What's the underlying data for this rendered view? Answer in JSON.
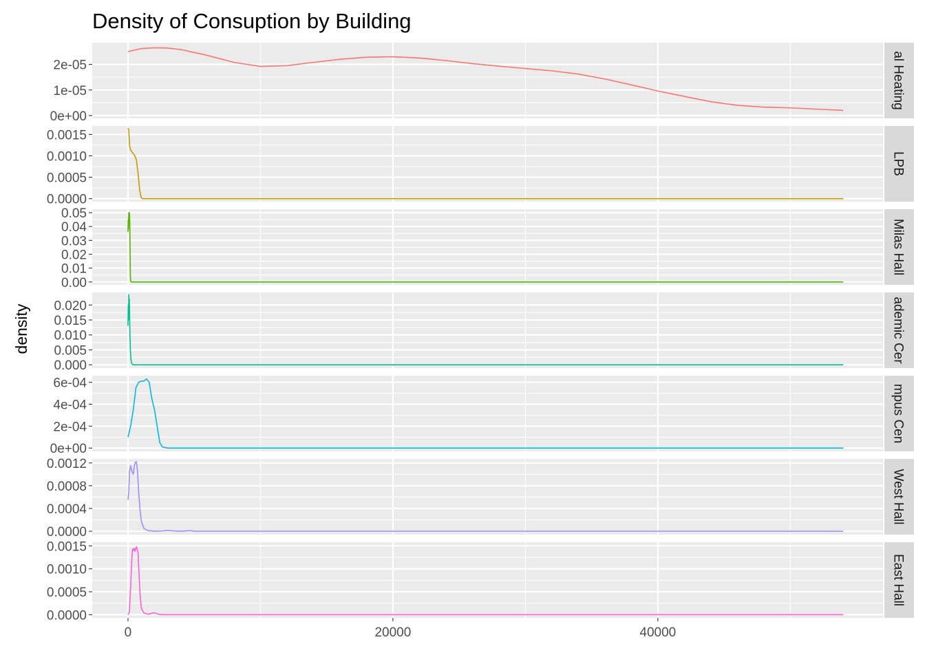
{
  "chart_data": {
    "type": "line",
    "title": "Density of Consuption by Building",
    "xlabel": "",
    "ylabel": "density",
    "xlim": [
      -2700,
      57000
    ],
    "x_ticks": [
      0,
      20000,
      40000
    ],
    "x_tick_labels": [
      "0",
      "20000",
      "40000"
    ],
    "grid": true,
    "legend": "none",
    "panels": [
      {
        "strip": "al Heating",
        "color": "#F8766D",
        "ylim": [
          -1.1e-06,
          2.85e-05
        ],
        "y_ticks": [
          0,
          1e-05,
          2e-05
        ],
        "y_tick_labels": [
          "0e+00",
          "1e-05",
          "2e-05"
        ],
        "x": [
          0,
          1000,
          2000,
          3000,
          4000,
          6000,
          8000,
          10000,
          12000,
          14000,
          16000,
          18000,
          20000,
          22000,
          24000,
          26000,
          28000,
          30000,
          32000,
          34000,
          36000,
          38000,
          40000,
          42000,
          44000,
          46000,
          48000,
          50000,
          52000,
          54000
        ],
        "y": [
          2.5e-05,
          2.62e-05,
          2.65e-05,
          2.64e-05,
          2.58e-05,
          2.35e-05,
          2.08e-05,
          1.92e-05,
          1.95e-05,
          2.08e-05,
          2.2e-05,
          2.28e-05,
          2.3e-05,
          2.25e-05,
          2.15e-05,
          2.03e-05,
          1.93e-05,
          1.84e-05,
          1.75e-05,
          1.62e-05,
          1.43e-05,
          1.2e-05,
          9.6e-06,
          7.5e-06,
          5.4e-06,
          4e-06,
          3.3e-06,
          3e-06,
          2.5e-06,
          2e-06
        ]
      },
      {
        "strip": "LPB",
        "color": "#C49A00",
        "ylim": [
          -7e-05,
          0.0017
        ],
        "y_ticks": [
          0,
          0.0005,
          0.001,
          0.0015
        ],
        "y_tick_labels": [
          "0.0000",
          "0.0005",
          "0.0010",
          "0.0015"
        ],
        "x": [
          0,
          60,
          120,
          180,
          280,
          400,
          520,
          640,
          760,
          880,
          1000,
          1100,
          1500,
          54000
        ],
        "y": [
          0.00165,
          0.0016,
          0.00125,
          0.00115,
          0.0011,
          0.00105,
          0.001,
          0.0009,
          0.0006,
          0.0002,
          2e-05,
          0,
          0,
          0
        ]
      },
      {
        "strip": "Milas Hall",
        "color": "#53B400",
        "ylim": [
          -0.0021,
          0.0525
        ],
        "y_ticks": [
          0,
          0.01,
          0.02,
          0.03,
          0.04,
          0.05
        ],
        "y_tick_labels": [
          "0.00",
          "0.01",
          "0.02",
          "0.03",
          "0.04",
          "0.05"
        ],
        "x": [
          0,
          20,
          40,
          60,
          80,
          100,
          120,
          140,
          160,
          180,
          200,
          250,
          54000
        ],
        "y": [
          0.036,
          0.045,
          0.038,
          0.05,
          0.044,
          0.05,
          0.048,
          0.04,
          0.02,
          0.005,
          0.0005,
          0,
          0
        ]
      },
      {
        "strip": "ademic Cer",
        "color": "#00C094",
        "ylim": [
          -0.0011,
          0.0242
        ],
        "y_ticks": [
          0,
          0.005,
          0.01,
          0.015,
          0.02
        ],
        "y_tick_labels": [
          "0.000",
          "0.005",
          "0.010",
          "0.015",
          "0.020"
        ],
        "x": [
          0,
          20,
          40,
          60,
          80,
          100,
          120,
          150,
          180,
          220,
          260,
          300,
          400,
          54000
        ],
        "y": [
          0.013,
          0.02,
          0.015,
          0.0235,
          0.02,
          0.022,
          0.017,
          0.01,
          0.005,
          0.002,
          0.0008,
          0.0003,
          0,
          0
        ]
      },
      {
        "strip": "mpus Cen",
        "color": "#00B6EB",
        "ylim": [
          -3e-05,
          0.00066
        ],
        "y_ticks": [
          0,
          0.0002,
          0.0004,
          0.0006
        ],
        "y_tick_labels": [
          "0e+00",
          "2e-04",
          "4e-04",
          "6e-04"
        ],
        "x": [
          0,
          200,
          400,
          600,
          800,
          1000,
          1200,
          1400,
          1600,
          1800,
          2000,
          2200,
          2400,
          2600,
          3000,
          54000
        ],
        "y": [
          0.0001,
          0.0002,
          0.00035,
          0.00055,
          0.0006,
          0.00061,
          0.00061,
          0.00063,
          0.0006,
          0.00045,
          0.00035,
          0.0002,
          5e-05,
          1e-05,
          0,
          0
        ]
      },
      {
        "strip": "West Hall",
        "color": "#A58AFF",
        "ylim": [
          -6e-05,
          0.00127
        ],
        "y_ticks": [
          0,
          0.0004,
          0.0008,
          0.0012
        ],
        "y_tick_labels": [
          "0.0000",
          "0.0004",
          "0.0008",
          "0.0012"
        ],
        "x": [
          0,
          60,
          120,
          200,
          300,
          400,
          480,
          560,
          640,
          720,
          800,
          900,
          1000,
          1200,
          1500,
          2000,
          2600,
          3000,
          3400,
          4000,
          4700,
          5000,
          6000,
          54000
        ],
        "y": [
          0.00055,
          0.0007,
          0.00105,
          0.00115,
          0.00105,
          0.001,
          0.00115,
          0.00121,
          0.00122,
          0.00105,
          0.0007,
          0.0004,
          0.00018,
          5e-05,
          1e-05,
          0,
          5e-06,
          1.5e-05,
          5e-06,
          0,
          1e-05,
          0,
          0,
          0
        ]
      },
      {
        "strip": "East Hall",
        "color": "#FB61D7",
        "ylim": [
          -7e-05,
          0.00158
        ],
        "y_ticks": [
          0,
          0.0005,
          0.001,
          0.0015
        ],
        "y_tick_labels": [
          "0.0000",
          "0.0005",
          "0.0010",
          "0.0015"
        ],
        "x": [
          0,
          100,
          200,
          280,
          340,
          400,
          460,
          520,
          580,
          640,
          700,
          760,
          800,
          900,
          1000,
          1200,
          1500,
          1800,
          2000,
          2300,
          2600,
          54000
        ],
        "y": [
          0,
          5e-05,
          0.0006,
          0.00115,
          0.00143,
          0.0014,
          0.00145,
          0.00138,
          0.00143,
          0.00148,
          0.00142,
          0.00135,
          0.0011,
          0.0005,
          0.00015,
          4e-05,
          1e-05,
          3e-05,
          4e-05,
          1e-05,
          0,
          0
        ]
      }
    ]
  }
}
